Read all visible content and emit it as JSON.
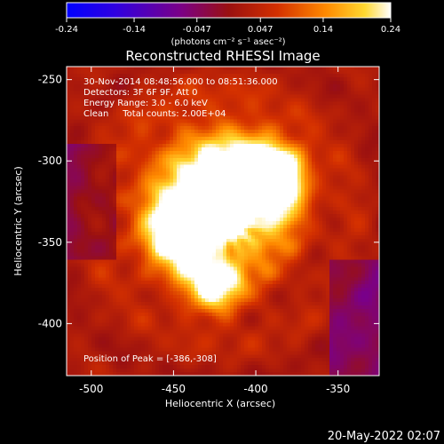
{
  "chart_data": {
    "type": "heatmap",
    "title": "Reconstructed RHESSI Image",
    "xlabel": "Heliocentric X (arcsec)",
    "ylabel": "Heliocentric Y (arcsec)",
    "xlim": [
      -515,
      -325
    ],
    "ylim": [
      -432,
      -242
    ],
    "x_ticks": [
      -500,
      -450,
      -400,
      -350
    ],
    "y_ticks": [
      -250,
      -300,
      -350,
      -400
    ],
    "colorbar": {
      "range": [
        -0.24,
        0.24
      ],
      "ticks": [
        "-0.24",
        "-0.14",
        "-0.047",
        "0.047",
        "0.14",
        "0.24"
      ],
      "label": "(photons cm⁻² s⁻¹ asec⁻²)"
    },
    "annotations": [
      "30-Nov-2014 08:48:56.000 to 08:51:36.000",
      "Detectors: 3F 6F 9F, Att 0",
      "Energy Range: 3.0 - 6.0 keV",
      "Clean     Total counts: 2.00E+04"
    ],
    "peak_label": "Position of Peak = [-386,-308]",
    "peak": [
      -386,
      -308
    ],
    "sources": [
      {
        "x": -410,
        "y": -318,
        "amp": 0.22,
        "sigma": 22
      },
      {
        "x": -388,
        "y": -308,
        "amp": 0.24,
        "sigma": 12
      },
      {
        "x": -445,
        "y": -345,
        "amp": 0.21,
        "sigma": 14
      },
      {
        "x": -425,
        "y": -378,
        "amp": 0.19,
        "sigma": 12
      },
      {
        "x": -430,
        "y": -325,
        "amp": 0.14,
        "sigma": 35
      }
    ]
  },
  "footer": {
    "date": "20-May-2022 02:07"
  }
}
